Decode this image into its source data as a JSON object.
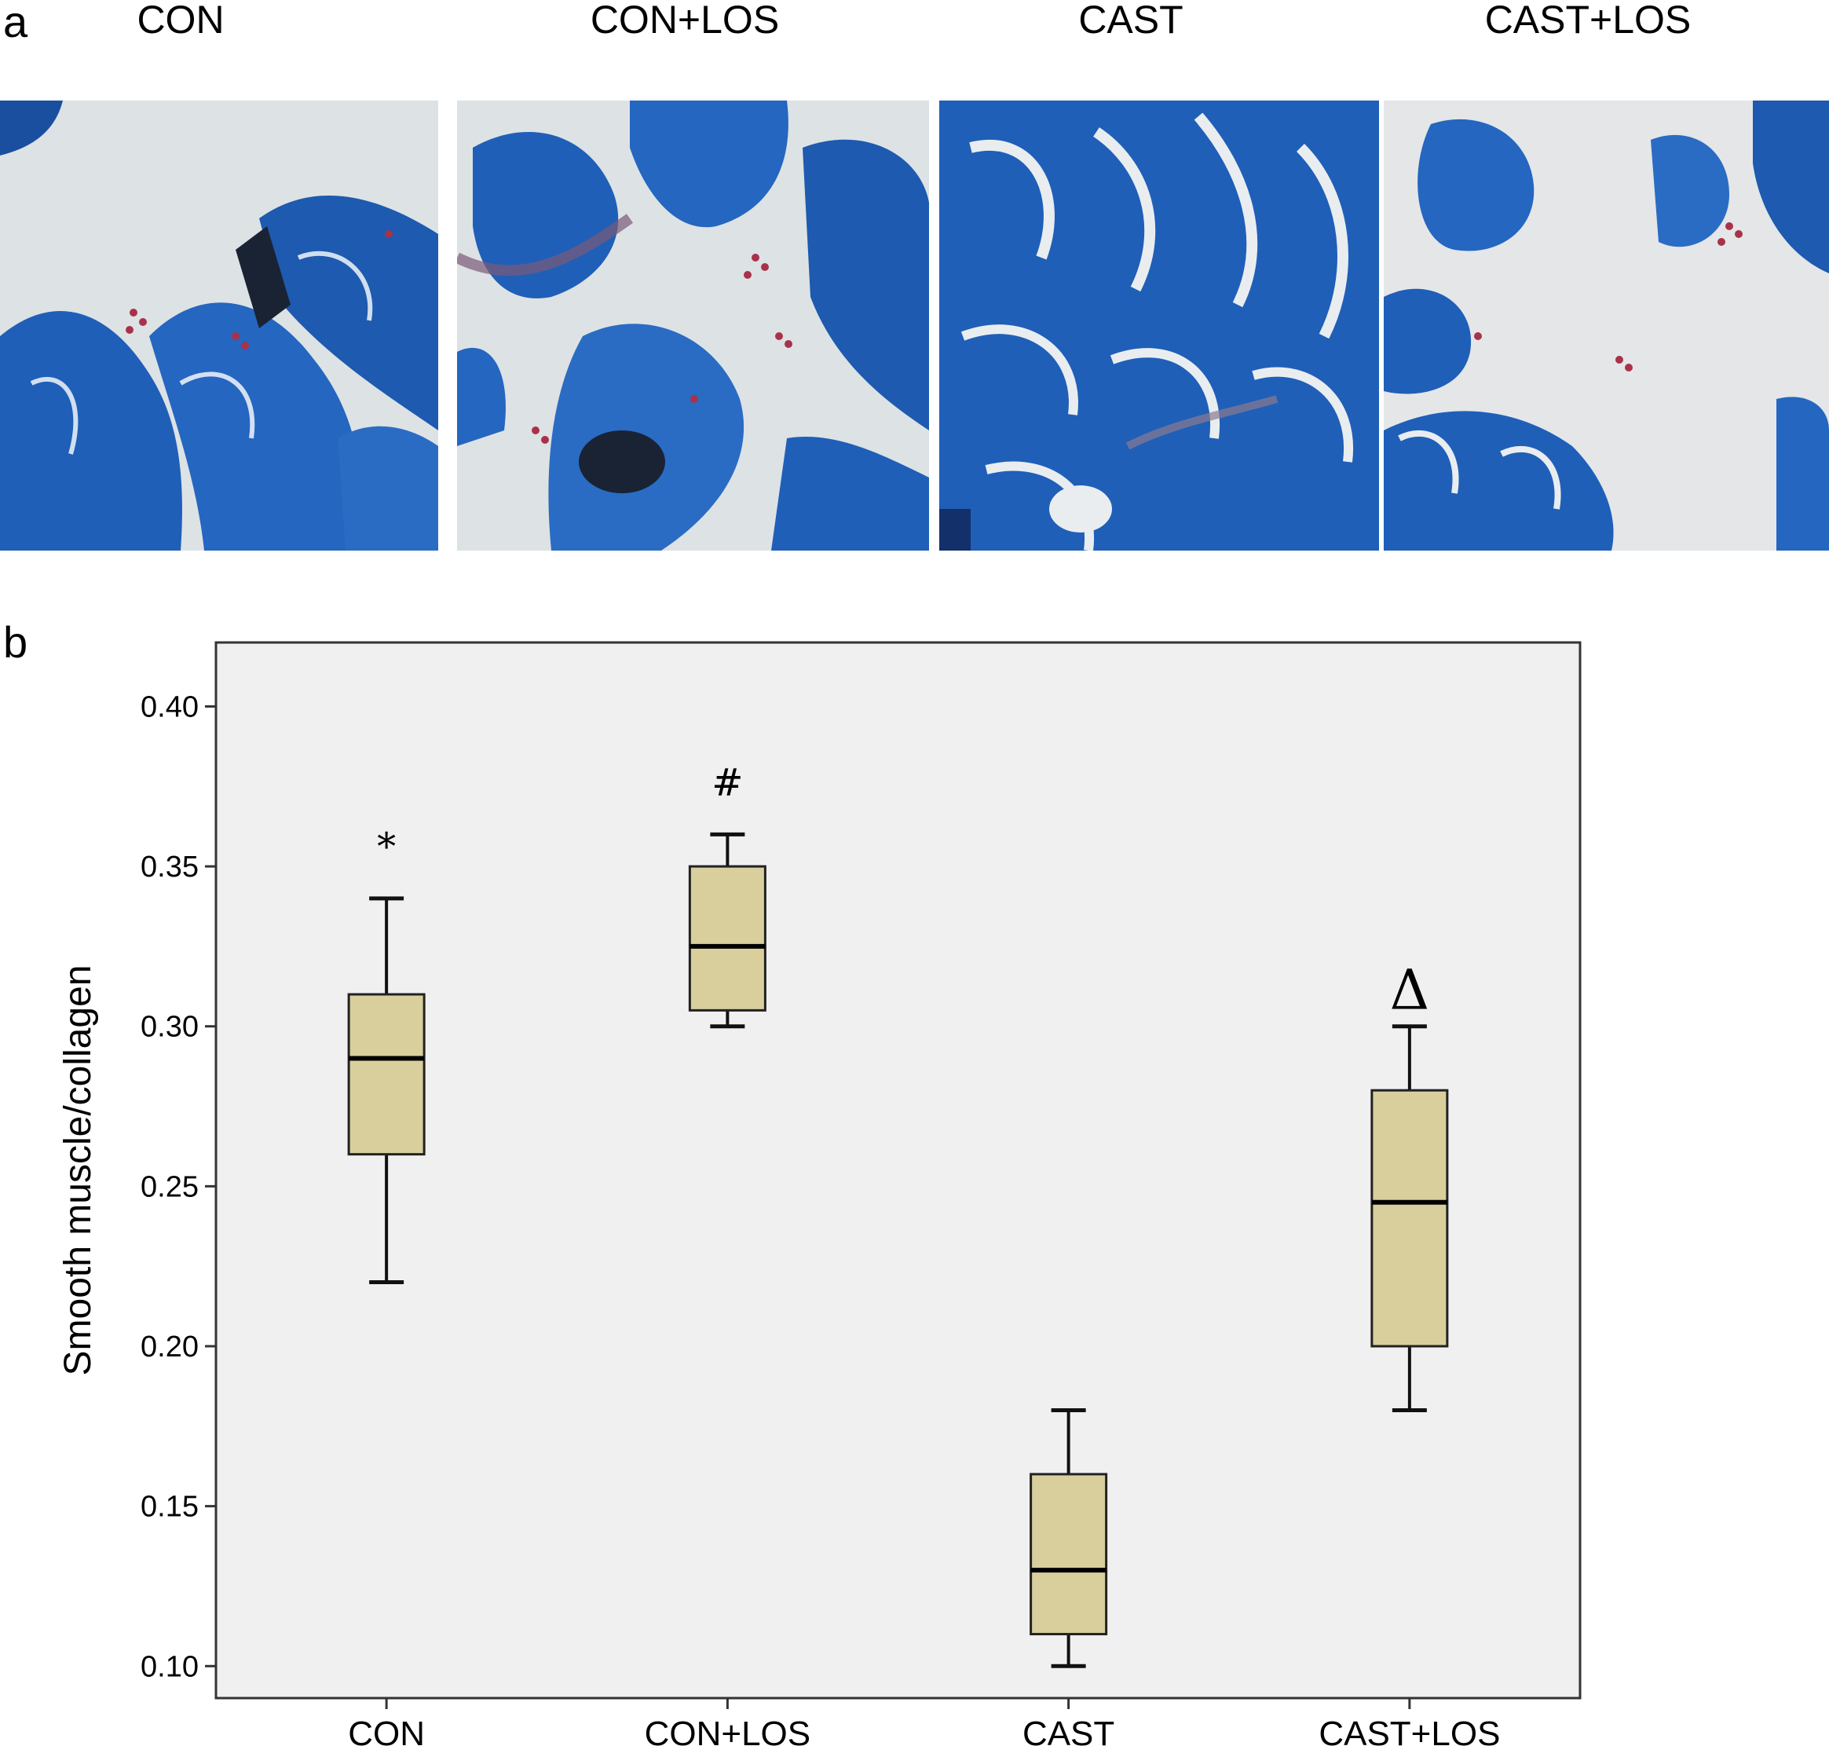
{
  "figure": {
    "panel_a_label": "a",
    "panel_b_label": "b"
  },
  "panel_a": {
    "images": [
      {
        "title": "CON"
      },
      {
        "title": "CON+LOS"
      },
      {
        "title": "CAST"
      },
      {
        "title": "CAST+LOS"
      }
    ]
  },
  "colors": {
    "box_fill": "#d8cf9c",
    "plot_background": "#f0f0f0",
    "stain_blue": "#1f5fb8",
    "stain_red": "#a8324a"
  },
  "chart_data": {
    "type": "box",
    "title": "",
    "xlabel": "",
    "ylabel": "Smooth muscle/collagen",
    "ylim": [
      0.09,
      0.42
    ],
    "yticks": [
      "0.10",
      "0.15",
      "0.20",
      "0.25",
      "0.30",
      "0.35",
      "0.40"
    ],
    "grid": false,
    "categories": [
      "CON",
      "CON+LOS",
      "CAST",
      "CAST+LOS"
    ],
    "boxes": [
      {
        "category": "CON",
        "min": 0.22,
        "q1": 0.26,
        "median": 0.29,
        "q3": 0.31,
        "max": 0.34,
        "annotation": "*"
      },
      {
        "category": "CON+LOS",
        "min": 0.3,
        "q1": 0.305,
        "median": 0.325,
        "q3": 0.35,
        "max": 0.36,
        "annotation": "#"
      },
      {
        "category": "CAST",
        "min": 0.1,
        "q1": 0.11,
        "median": 0.13,
        "q3": 0.16,
        "max": 0.18,
        "annotation": ""
      },
      {
        "category": "CAST+LOS",
        "min": 0.18,
        "q1": 0.2,
        "median": 0.245,
        "q3": 0.28,
        "max": 0.3,
        "annotation": "Δ"
      }
    ]
  }
}
